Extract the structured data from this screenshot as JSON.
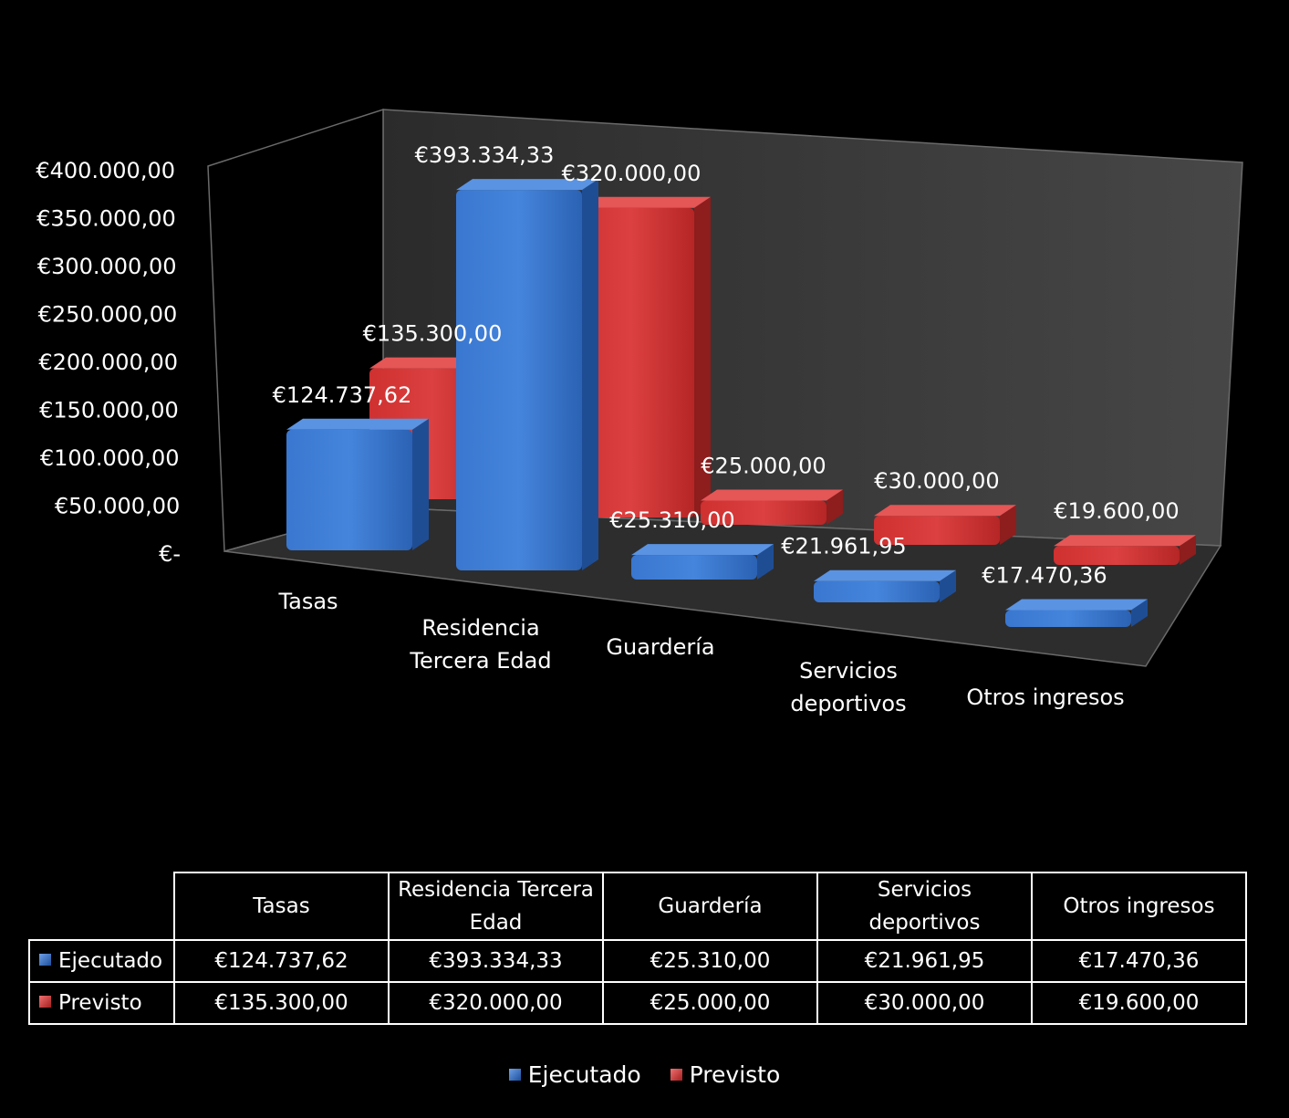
{
  "chart_data": {
    "type": "bar",
    "subtype": "3d-clustered-column",
    "categories": [
      "Tasas",
      "Residencia Tercera Edad",
      "Guardería",
      "Servicios deportivos",
      "Otros ingresos"
    ],
    "category_label_lines": [
      [
        "Tasas"
      ],
      [
        "Residencia",
        "Tercera Edad"
      ],
      [
        "Guardería"
      ],
      [
        "Servicios",
        "deportivos"
      ],
      [
        "Otros ingresos"
      ]
    ],
    "series": [
      {
        "name": "Ejecutado",
        "values": [
          124737.62,
          393334.33,
          25310.0,
          21961.95,
          17470.36
        ],
        "labels": [
          "€124.737,62",
          "€393.334,33",
          "€25.310,00",
          "€21.961,95",
          "€17.470,36"
        ],
        "color": "#2e6cc4"
      },
      {
        "name": "Previsto",
        "values": [
          135300.0,
          320000.0,
          25000.0,
          30000.0,
          19600.0
        ],
        "labels": [
          "€135.300,00",
          "€320.000,00",
          "€25.000,00",
          "€30.000,00",
          "€19.600,00"
        ],
        "color": "#d23434"
      }
    ],
    "ylim": [
      0,
      400000
    ],
    "yticks": [
      0,
      50000,
      100000,
      150000,
      200000,
      250000,
      300000,
      350000,
      400000
    ],
    "ytick_labels": [
      "€-",
      "€50.000,00",
      "€100.000,00",
      "€150.000,00",
      "€200.000,00",
      "€250.000,00",
      "€300.000,00",
      "€350.000,00",
      "€400.000,00"
    ],
    "title": "",
    "xlabel": "",
    "ylabel": "",
    "legend": {
      "placement": "bottom",
      "entries": [
        "Ejecutado",
        "Previsto"
      ]
    },
    "data_table": {
      "headers": [
        "Tasas",
        "Residencia Tercera Edad",
        "Guardería",
        "Servicios deportivos",
        "Otros ingresos"
      ],
      "header_lines": [
        [
          "Tasas"
        ],
        [
          "Residencia Tercera",
          "Edad"
        ],
        [
          "Guardería"
        ],
        [
          "Servicios",
          "deportivos"
        ],
        [
          "Otros ingresos"
        ]
      ],
      "rows": [
        {
          "label": "Ejecutado",
          "cells": [
            "€124.737,62",
            "€393.334,33",
            "€25.310,00",
            "€21.961,95",
            "€17.470,36"
          ]
        },
        {
          "label": "Previsto",
          "cells": [
            "€135.300,00",
            "€320.000,00",
            "€25.000,00",
            "€30.000,00",
            "€19.600,00"
          ]
        }
      ]
    }
  }
}
